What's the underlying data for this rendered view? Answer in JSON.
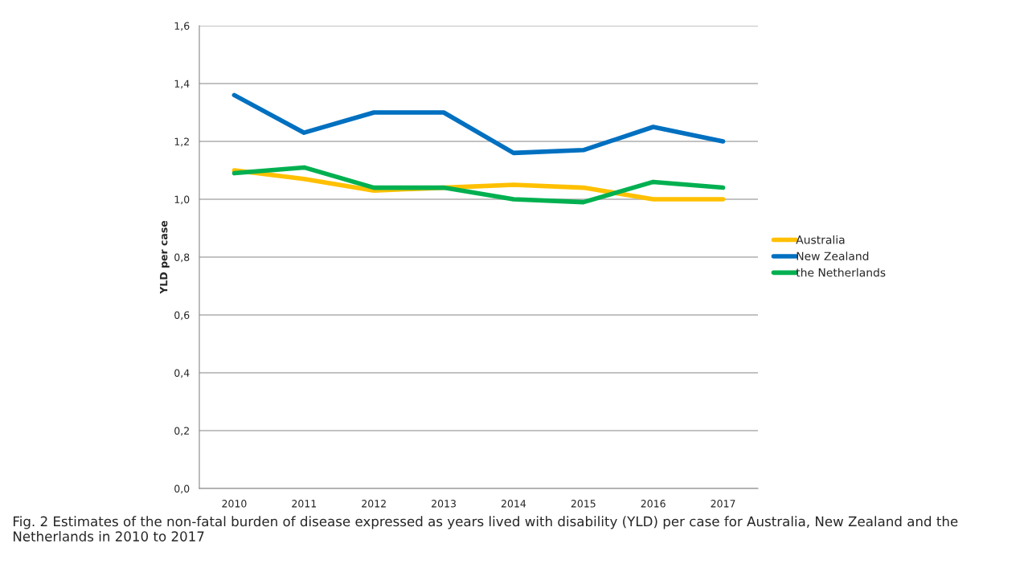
{
  "chart_data": {
    "type": "line",
    "categories": [
      "2010",
      "2011",
      "2012",
      "2013",
      "2014",
      "2015",
      "2016",
      "2017"
    ],
    "series": [
      {
        "name": "Australia",
        "color": "#ffc000",
        "values": [
          1.1,
          1.07,
          1.03,
          1.04,
          1.05,
          1.04,
          1.0,
          1.0
        ]
      },
      {
        "name": "New Zealand",
        "color": "#0070c0",
        "values": [
          1.36,
          1.23,
          1.3,
          1.3,
          1.16,
          1.17,
          1.25,
          1.2
        ]
      },
      {
        "name": "the Netherlands",
        "color": "#00b050",
        "values": [
          1.09,
          1.11,
          1.04,
          1.04,
          1.0,
          0.99,
          1.06,
          1.04
        ]
      }
    ],
    "ylabel": "YLD per case",
    "ylim": [
      0,
      1.6
    ],
    "yticks": [
      {
        "value": 0,
        "label": "0,0"
      },
      {
        "value": 0.2,
        "label": "0,2"
      },
      {
        "value": 0.4,
        "label": "0,4"
      },
      {
        "value": 0.6,
        "label": "0,6"
      },
      {
        "value": 0.8,
        "label": "0,8"
      },
      {
        "value": 1.0,
        "label": "1,0"
      },
      {
        "value": 1.2,
        "label": "1,2"
      },
      {
        "value": 1.4,
        "label": "1,4"
      },
      {
        "value": 1.6,
        "label": "1,6"
      }
    ],
    "grid": "y",
    "legend": "right",
    "marker": "none",
    "line_style": "solid",
    "annotations": [
      "Fig. 2 Estimates of the non-fatal burden of disease expressed as years lived with disability (YLD) per case for Australia, New Zealand and the Netherlands in 2010 to 2017"
    ]
  }
}
